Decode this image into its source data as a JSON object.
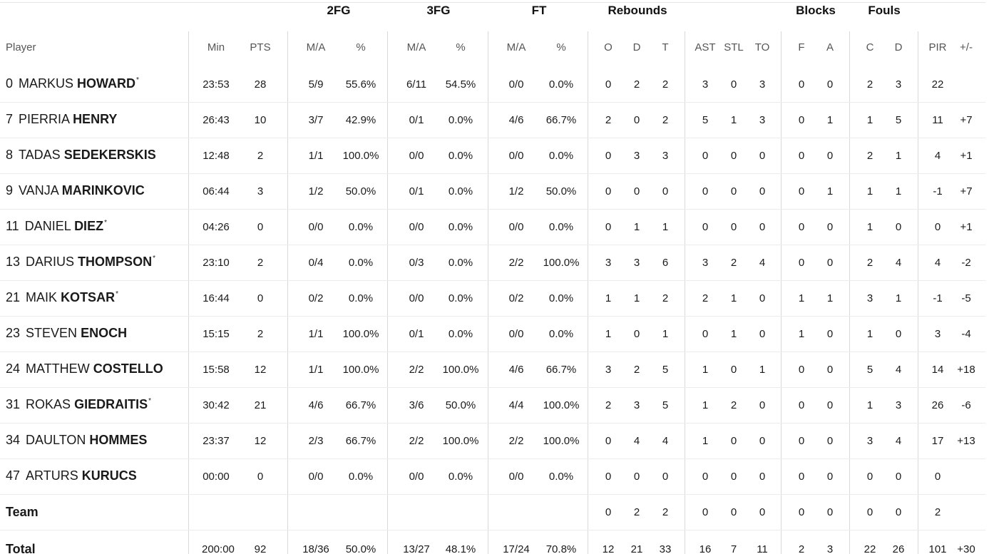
{
  "group_headers": {
    "fg2": "2FG",
    "fg3": "3FG",
    "ft": "FT",
    "rebounds": "Rebounds",
    "blocks": "Blocks",
    "fouls": "Fouls"
  },
  "columns": {
    "player": "Player",
    "min": "Min",
    "pts": "PTS",
    "fg2_ma": "M/A",
    "fg2_pct": "%",
    "fg3_ma": "M/A",
    "fg3_pct": "%",
    "ft_ma": "M/A",
    "ft_pct": "%",
    "reb_o": "O",
    "reb_d": "D",
    "reb_t": "T",
    "ast": "AST",
    "stl": "STL",
    "to": "TO",
    "blk_f": "F",
    "blk_a": "A",
    "foul_c": "C",
    "foul_d": "D",
    "pir": "PIR",
    "pm": "+/-"
  },
  "players": [
    {
      "num": "0",
      "first": "MARKUS",
      "last": "HOWARD",
      "starter": "*",
      "min": "23:53",
      "pts": "28",
      "fg2_ma": "5/9",
      "fg2_pct": "55.6%",
      "fg3_ma": "6/11",
      "fg3_pct": "54.5%",
      "ft_ma": "0/0",
      "ft_pct": "0.0%",
      "reb_o": "0",
      "reb_d": "2",
      "reb_t": "2",
      "ast": "3",
      "stl": "0",
      "to": "3",
      "blk_f": "0",
      "blk_a": "0",
      "foul_c": "2",
      "foul_d": "3",
      "pir": "22",
      "pm": ""
    },
    {
      "num": "7",
      "first": "PIERRIA",
      "last": "HENRY",
      "starter": "",
      "min": "26:43",
      "pts": "10",
      "fg2_ma": "3/7",
      "fg2_pct": "42.9%",
      "fg3_ma": "0/1",
      "fg3_pct": "0.0%",
      "ft_ma": "4/6",
      "ft_pct": "66.7%",
      "reb_o": "2",
      "reb_d": "0",
      "reb_t": "2",
      "ast": "5",
      "stl": "1",
      "to": "3",
      "blk_f": "0",
      "blk_a": "1",
      "foul_c": "1",
      "foul_d": "5",
      "pir": "11",
      "pm": "+7"
    },
    {
      "num": "8",
      "first": "TADAS",
      "last": "SEDEKERSKIS",
      "starter": "",
      "min": "12:48",
      "pts": "2",
      "fg2_ma": "1/1",
      "fg2_pct": "100.0%",
      "fg3_ma": "0/0",
      "fg3_pct": "0.0%",
      "ft_ma": "0/0",
      "ft_pct": "0.0%",
      "reb_o": "0",
      "reb_d": "3",
      "reb_t": "3",
      "ast": "0",
      "stl": "0",
      "to": "0",
      "blk_f": "0",
      "blk_a": "0",
      "foul_c": "2",
      "foul_d": "1",
      "pir": "4",
      "pm": "+1"
    },
    {
      "num": "9",
      "first": "VANJA",
      "last": "MARINKOVIC",
      "starter": "",
      "min": "06:44",
      "pts": "3",
      "fg2_ma": "1/2",
      "fg2_pct": "50.0%",
      "fg3_ma": "0/1",
      "fg3_pct": "0.0%",
      "ft_ma": "1/2",
      "ft_pct": "50.0%",
      "reb_o": "0",
      "reb_d": "0",
      "reb_t": "0",
      "ast": "0",
      "stl": "0",
      "to": "0",
      "blk_f": "0",
      "blk_a": "1",
      "foul_c": "1",
      "foul_d": "1",
      "pir": "-1",
      "pm": "+7"
    },
    {
      "num": "11",
      "first": "DANIEL",
      "last": "DIEZ",
      "starter": "*",
      "min": "04:26",
      "pts": "0",
      "fg2_ma": "0/0",
      "fg2_pct": "0.0%",
      "fg3_ma": "0/0",
      "fg3_pct": "0.0%",
      "ft_ma": "0/0",
      "ft_pct": "0.0%",
      "reb_o": "0",
      "reb_d": "1",
      "reb_t": "1",
      "ast": "0",
      "stl": "0",
      "to": "0",
      "blk_f": "0",
      "blk_a": "0",
      "foul_c": "1",
      "foul_d": "0",
      "pir": "0",
      "pm": "+1"
    },
    {
      "num": "13",
      "first": "DARIUS",
      "last": "THOMPSON",
      "starter": "*",
      "min": "23:10",
      "pts": "2",
      "fg2_ma": "0/4",
      "fg2_pct": "0.0%",
      "fg3_ma": "0/3",
      "fg3_pct": "0.0%",
      "ft_ma": "2/2",
      "ft_pct": "100.0%",
      "reb_o": "3",
      "reb_d": "3",
      "reb_t": "6",
      "ast": "3",
      "stl": "2",
      "to": "4",
      "blk_f": "0",
      "blk_a": "0",
      "foul_c": "2",
      "foul_d": "4",
      "pir": "4",
      "pm": "-2"
    },
    {
      "num": "21",
      "first": "MAIK",
      "last": "KOTSAR",
      "starter": "*",
      "min": "16:44",
      "pts": "0",
      "fg2_ma": "0/2",
      "fg2_pct": "0.0%",
      "fg3_ma": "0/0",
      "fg3_pct": "0.0%",
      "ft_ma": "0/2",
      "ft_pct": "0.0%",
      "reb_o": "1",
      "reb_d": "1",
      "reb_t": "2",
      "ast": "2",
      "stl": "1",
      "to": "0",
      "blk_f": "1",
      "blk_a": "1",
      "foul_c": "3",
      "foul_d": "1",
      "pir": "-1",
      "pm": "-5"
    },
    {
      "num": "23",
      "first": "STEVEN",
      "last": "ENOCH",
      "starter": "",
      "min": "15:15",
      "pts": "2",
      "fg2_ma": "1/1",
      "fg2_pct": "100.0%",
      "fg3_ma": "0/1",
      "fg3_pct": "0.0%",
      "ft_ma": "0/0",
      "ft_pct": "0.0%",
      "reb_o": "1",
      "reb_d": "0",
      "reb_t": "1",
      "ast": "0",
      "stl": "1",
      "to": "0",
      "blk_f": "1",
      "blk_a": "0",
      "foul_c": "1",
      "foul_d": "0",
      "pir": "3",
      "pm": "-4"
    },
    {
      "num": "24",
      "first": "MATTHEW",
      "last": "COSTELLO",
      "starter": "",
      "min": "15:58",
      "pts": "12",
      "fg2_ma": "1/1",
      "fg2_pct": "100.0%",
      "fg3_ma": "2/2",
      "fg3_pct": "100.0%",
      "ft_ma": "4/6",
      "ft_pct": "66.7%",
      "reb_o": "3",
      "reb_d": "2",
      "reb_t": "5",
      "ast": "1",
      "stl": "0",
      "to": "1",
      "blk_f": "0",
      "blk_a": "0",
      "foul_c": "5",
      "foul_d": "4",
      "pir": "14",
      "pm": "+18"
    },
    {
      "num": "31",
      "first": "ROKAS",
      "last": "GIEDRAITIS",
      "starter": "*",
      "min": "30:42",
      "pts": "21",
      "fg2_ma": "4/6",
      "fg2_pct": "66.7%",
      "fg3_ma": "3/6",
      "fg3_pct": "50.0%",
      "ft_ma": "4/4",
      "ft_pct": "100.0%",
      "reb_o": "2",
      "reb_d": "3",
      "reb_t": "5",
      "ast": "1",
      "stl": "2",
      "to": "0",
      "blk_f": "0",
      "blk_a": "0",
      "foul_c": "1",
      "foul_d": "3",
      "pir": "26",
      "pm": "-6"
    },
    {
      "num": "34",
      "first": "DAULTON",
      "last": "HOMMES",
      "starter": "",
      "min": "23:37",
      "pts": "12",
      "fg2_ma": "2/3",
      "fg2_pct": "66.7%",
      "fg3_ma": "2/2",
      "fg3_pct": "100.0%",
      "ft_ma": "2/2",
      "ft_pct": "100.0%",
      "reb_o": "0",
      "reb_d": "4",
      "reb_t": "4",
      "ast": "1",
      "stl": "0",
      "to": "0",
      "blk_f": "0",
      "blk_a": "0",
      "foul_c": "3",
      "foul_d": "4",
      "pir": "17",
      "pm": "+13"
    },
    {
      "num": "47",
      "first": "ARTURS",
      "last": "KURUCS",
      "starter": "",
      "min": "00:00",
      "pts": "0",
      "fg2_ma": "0/0",
      "fg2_pct": "0.0%",
      "fg3_ma": "0/0",
      "fg3_pct": "0.0%",
      "ft_ma": "0/0",
      "ft_pct": "0.0%",
      "reb_o": "0",
      "reb_d": "0",
      "reb_t": "0",
      "ast": "0",
      "stl": "0",
      "to": "0",
      "blk_f": "0",
      "blk_a": "0",
      "foul_c": "0",
      "foul_d": "0",
      "pir": "0",
      "pm": ""
    }
  ],
  "team_row": {
    "label": "Team",
    "min": "",
    "pts": "",
    "fg2_ma": "",
    "fg2_pct": "",
    "fg3_ma": "",
    "fg3_pct": "",
    "ft_ma": "",
    "ft_pct": "",
    "reb_o": "0",
    "reb_d": "2",
    "reb_t": "2",
    "ast": "0",
    "stl": "0",
    "to": "0",
    "blk_f": "0",
    "blk_a": "0",
    "foul_c": "0",
    "foul_d": "0",
    "pir": "2",
    "pm": ""
  },
  "total_row": {
    "label": "Total",
    "min": "200:00",
    "pts": "92",
    "fg2_ma": "18/36",
    "fg2_pct": "50.0%",
    "fg3_ma": "13/27",
    "fg3_pct": "48.1%",
    "ft_ma": "17/24",
    "ft_pct": "70.8%",
    "reb_o": "12",
    "reb_d": "21",
    "reb_t": "33",
    "ast": "16",
    "stl": "7",
    "to": "11",
    "blk_f": "2",
    "blk_a": "3",
    "foul_c": "22",
    "foul_d": "26",
    "pir": "101",
    "pm": "+30"
  }
}
